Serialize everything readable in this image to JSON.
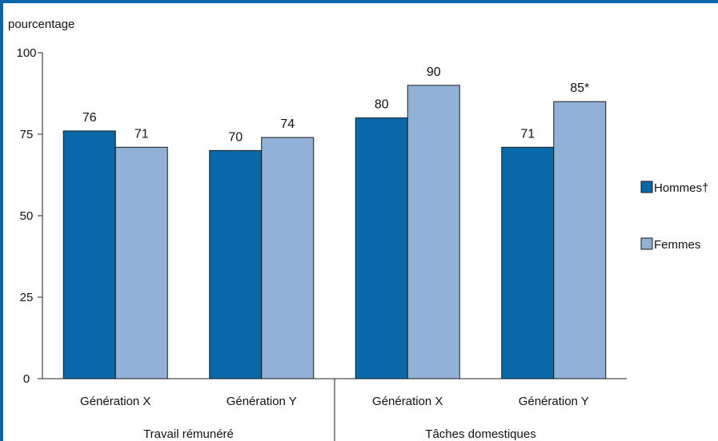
{
  "chart_data": {
    "type": "bar",
    "ylabel": "pourcentage",
    "ylim": [
      0,
      100
    ],
    "yticks": [
      0,
      25,
      50,
      75,
      100
    ],
    "categories": [
      "Génération  X",
      "Génération Y",
      "Génération  X",
      "Génération Y"
    ],
    "groups": [
      "Travail rémunéré",
      "Tâches domestiques"
    ],
    "series": [
      {
        "name": "Hommes†",
        "values": [
          76,
          70,
          80,
          71
        ],
        "labels": [
          "76",
          "70",
          "80",
          "71"
        ],
        "color": "#0868a8"
      },
      {
        "name": "Femmes",
        "values": [
          71,
          74,
          90,
          85
        ],
        "labels": [
          "71",
          "74",
          "90",
          "85*"
        ],
        "color": "#91b1d6"
      }
    ],
    "grid": false,
    "legend_position": "right"
  }
}
